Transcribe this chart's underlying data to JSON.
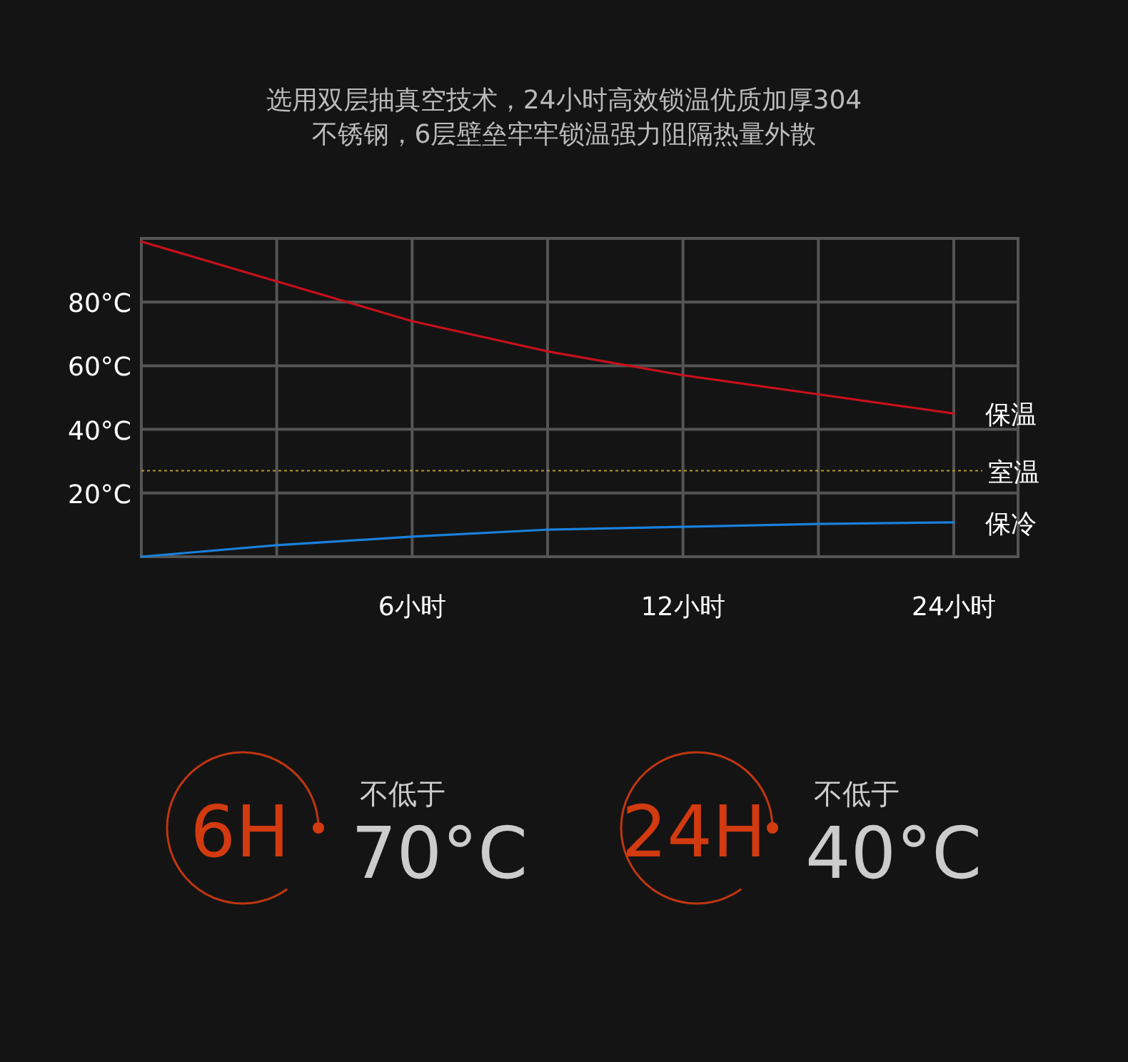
{
  "chart_data": {
    "type": "line",
    "title": "选用双层抽真空技术，24小时高效锁温优质加厚304\n不锈钢，6层壁垒牢牢锁温强力阻隔热量外散",
    "categories": [
      null,
      null,
      "6小时",
      null,
      "12小时",
      null,
      "24小时"
    ],
    "series": [
      {
        "name": "保温",
        "color": "#c8101c",
        "values": [
          99,
          86.5,
          74,
          64.5,
          57,
          51,
          45
        ]
      },
      {
        "name": "保冷",
        "color": "#1a80dc",
        "values": [
          0,
          3.6,
          6.3,
          8.5,
          9.4,
          10.3,
          10.8
        ]
      }
    ],
    "ylim": [
      0,
      100
    ],
    "yticks": [
      {
        "value": 20,
        "label": "20°C"
      },
      {
        "value": 40,
        "label": "40°C"
      },
      {
        "value": 60,
        "label": "60°C"
      },
      {
        "value": 80,
        "label": "80°C"
      }
    ],
    "grid": true,
    "ref_lines": [
      {
        "axis": "y",
        "value": 27,
        "label": "室温",
        "color": "#b89a30",
        "line_style": "dotted"
      }
    ],
    "annotations": [
      "6H",
      "不低于",
      "70°C",
      "24H",
      "不低于",
      "40°C"
    ]
  }
}
